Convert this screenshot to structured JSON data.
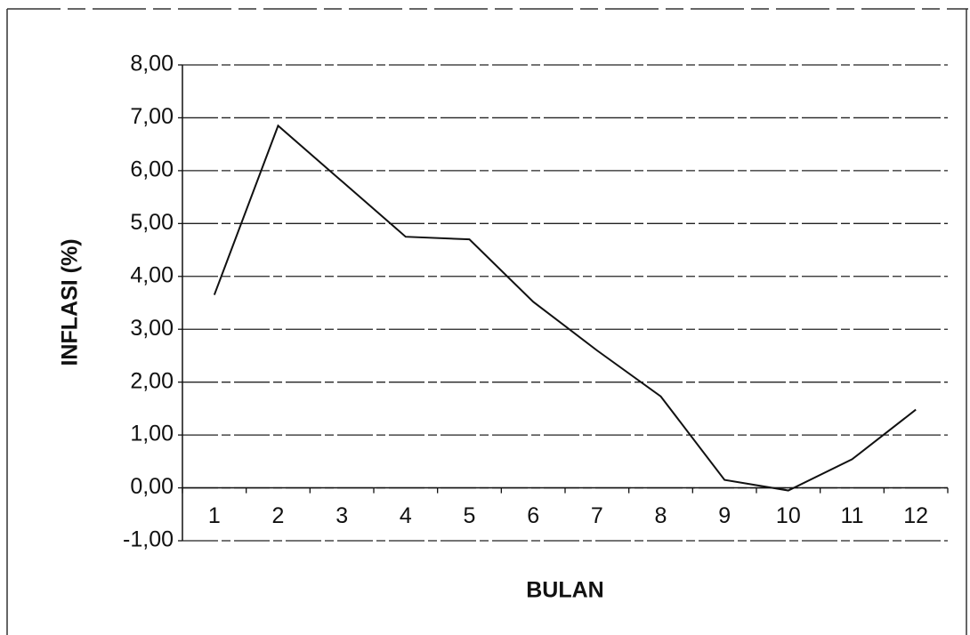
{
  "chart_data": {
    "type": "line",
    "x_label": "BULAN",
    "y_label": "INFLASI (%)",
    "categories": [
      "1",
      "2",
      "3",
      "4",
      "5",
      "6",
      "7",
      "8",
      "9",
      "10",
      "11",
      "12"
    ],
    "series": [
      {
        "name": "INFLASI",
        "color": "#111111",
        "values": [
          3.65,
          6.85,
          5.8,
          4.75,
          4.7,
          3.52,
          2.6,
          1.73,
          0.15,
          -0.05,
          0.54,
          1.48
        ]
      }
    ],
    "ylim": [
      -1,
      8
    ],
    "yticks": [
      {
        "value": -1,
        "label": "-1,00"
      },
      {
        "value": 0,
        "label": "0,00"
      },
      {
        "value": 1,
        "label": "1,00"
      },
      {
        "value": 2,
        "label": "2,00"
      },
      {
        "value": 3,
        "label": "3,00"
      },
      {
        "value": 4,
        "label": "4,00"
      },
      {
        "value": 5,
        "label": "5,00"
      },
      {
        "value": 6,
        "label": "6,00"
      },
      {
        "value": 7,
        "label": "7,00"
      },
      {
        "value": 8,
        "label": "8,00"
      }
    ],
    "grid": true
  }
}
